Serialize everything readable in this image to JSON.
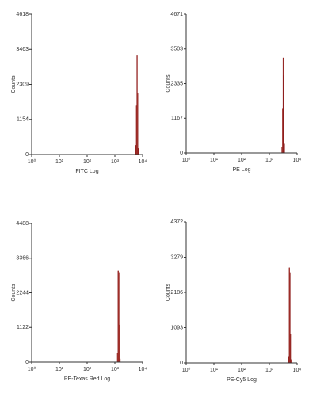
{
  "chart_data": [
    {
      "type": "histogram",
      "xlabel": "FITC Log",
      "ylabel": "Counts",
      "xscale": "log",
      "bins": [
        5600,
        5900,
        6200,
        6500,
        6800,
        7100
      ],
      "counts": [
        300,
        1600,
        3250,
        2000,
        200
      ],
      "color": "#e8826a",
      "edgecolor": "#8b1a1a",
      "xlim": [
        1,
        10000
      ],
      "xticks": [
        {
          "value": 1,
          "label": "10⁰"
        },
        {
          "value": 10,
          "label": "10¹"
        },
        {
          "value": 100,
          "label": "10²"
        },
        {
          "value": 1000,
          "label": "10³"
        },
        {
          "value": 10000,
          "label": "10⁴"
        }
      ],
      "ylim": [
        0,
        4618
      ],
      "yticks": [
        0,
        1154,
        2309,
        3463,
        4618
      ]
    },
    {
      "type": "histogram",
      "xlabel": "PE Log",
      "ylabel": "Counts",
      "xscale": "log",
      "bins": [
        2800,
        2950,
        3100,
        3250,
        3400,
        3550
      ],
      "counts": [
        200,
        1500,
        3200,
        2600,
        300
      ],
      "color": "#e8826a",
      "edgecolor": "#8b1a1a",
      "xlim": [
        1,
        10000
      ],
      "xticks": [
        {
          "value": 1,
          "label": "10⁰"
        },
        {
          "value": 10,
          "label": "10¹"
        },
        {
          "value": 100,
          "label": "10²"
        },
        {
          "value": 1000,
          "label": "10³"
        },
        {
          "value": 10000,
          "label": "10⁴"
        }
      ],
      "ylim": [
        0,
        4671
      ],
      "yticks": [
        0,
        1167,
        2335,
        3503,
        4671
      ]
    },
    {
      "type": "histogram",
      "xlabel": "PE-Texas Red Log",
      "ylabel": "Counts",
      "xscale": "log",
      "bins": [
        1220,
        1290,
        1360,
        1430,
        1500,
        1570
      ],
      "counts": [
        300,
        2950,
        2900,
        1200,
        100
      ],
      "color": "#e8826a",
      "edgecolor": "#8b1a1a",
      "xlim": [
        1,
        10000
      ],
      "xticks": [
        {
          "value": 1,
          "label": "10⁰"
        },
        {
          "value": 10,
          "label": "10¹"
        },
        {
          "value": 100,
          "label": "10²"
        },
        {
          "value": 1000,
          "label": "10³"
        },
        {
          "value": 10000,
          "label": "10⁴"
        }
      ],
      "ylim": [
        0,
        4488
      ],
      "yticks": [
        0,
        1122,
        2244,
        3366,
        4488
      ]
    },
    {
      "type": "histogram",
      "xlabel": "PE-Cy5 Log",
      "ylabel": "Counts",
      "xscale": "log",
      "bins": [
        4900,
        5150,
        5400,
        5650,
        5900,
        6150
      ],
      "counts": [
        200,
        2950,
        2800,
        900,
        100
      ],
      "color": "#e8826a",
      "edgecolor": "#8b1a1a",
      "xlim": [
        1,
        10000
      ],
      "xticks": [
        {
          "value": 1,
          "label": "10⁰"
        },
        {
          "value": 10,
          "label": "10¹"
        },
        {
          "value": 100,
          "label": "10²"
        },
        {
          "value": 1000,
          "label": "10³"
        },
        {
          "value": 10000,
          "label": "10⁴"
        }
      ],
      "ylim": [
        0,
        4372
      ],
      "yticks": [
        0,
        1093,
        2186,
        3279,
        4372
      ]
    }
  ]
}
